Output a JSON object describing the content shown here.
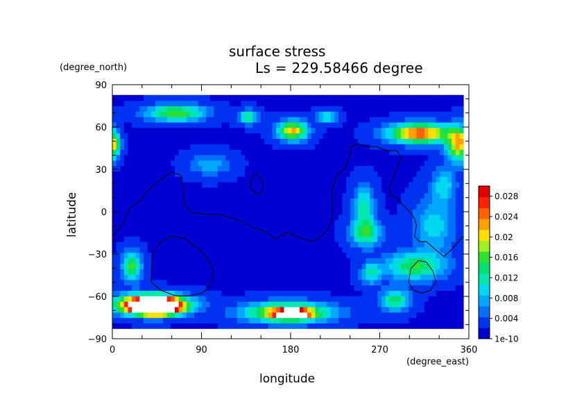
{
  "chart_data": {
    "type": "heatmap",
    "title": "surface stress",
    "subtitle": "Ls = 229.58466 degree",
    "xlabel": "longitude",
    "ylabel": "latitude",
    "x_unit": "(degree_east)",
    "y_unit": "(degree_north)",
    "xlim": [
      0,
      360
    ],
    "ylim": [
      -90,
      90
    ],
    "x_ticks": [
      "0",
      "90",
      "180",
      "270",
      "360"
    ],
    "y_ticks": [
      "90",
      "60",
      "30",
      "0",
      "−30",
      "−60",
      "−90"
    ],
    "colorbar": {
      "range": [
        0,
        0.03
      ],
      "tick_labels": [
        "0.028",
        "0.024",
        "0.02",
        "0.016",
        "0.012",
        "0.008",
        "0.004",
        "1e-10"
      ],
      "tick_values": [
        0.028,
        0.024,
        0.02,
        0.016,
        0.012,
        0.008,
        0.004,
        0.0
      ],
      "colors": [
        "#0000d0",
        "#0033f0",
        "#0070ff",
        "#00a8ff",
        "#00d8f0",
        "#00e8b0",
        "#00e070",
        "#30e030",
        "#a0f020",
        "#ffe000",
        "#ffa000",
        "#ff6000",
        "#ff2000",
        "#e00000"
      ]
    },
    "background_level": 0.002,
    "features": [
      {
        "lon": 40,
        "lat": -68,
        "rx": 35,
        "ry": 7,
        "peak": 0.034
      },
      {
        "lon": 45,
        "lat": -70,
        "rx": 22,
        "ry": 5,
        "peak": 0.04
      },
      {
        "lon": 180,
        "lat": -74,
        "rx": 42,
        "ry": 7,
        "peak": 0.022
      },
      {
        "lon": 185,
        "lat": -75,
        "rx": 15,
        "ry": 3,
        "peak": 0.032
      },
      {
        "lon": 315,
        "lat": 58,
        "rx": 30,
        "ry": 7,
        "peak": 0.024
      },
      {
        "lon": 355,
        "lat": 50,
        "rx": 12,
        "ry": 12,
        "peak": 0.02
      },
      {
        "lon": 2,
        "lat": 50,
        "rx": 6,
        "ry": 10,
        "peak": 0.018
      },
      {
        "lon": 185,
        "lat": 60,
        "rx": 15,
        "ry": 7,
        "peak": 0.02
      },
      {
        "lon": 65,
        "lat": 73,
        "rx": 30,
        "ry": 6,
        "peak": 0.015
      },
      {
        "lon": 140,
        "lat": 70,
        "rx": 10,
        "ry": 5,
        "peak": 0.011
      },
      {
        "lon": 220,
        "lat": 70,
        "rx": 10,
        "ry": 4,
        "peak": 0.01
      },
      {
        "lon": 20,
        "lat": -40,
        "rx": 10,
        "ry": 10,
        "peak": 0.014
      },
      {
        "lon": 310,
        "lat": -40,
        "rx": 30,
        "ry": 10,
        "peak": 0.013
      },
      {
        "lon": 290,
        "lat": -65,
        "rx": 15,
        "ry": 8,
        "peak": 0.012
      },
      {
        "lon": 265,
        "lat": -45,
        "rx": 10,
        "ry": 8,
        "peak": 0.009
      },
      {
        "lon": 260,
        "lat": -15,
        "rx": 15,
        "ry": 10,
        "peak": 0.013
      },
      {
        "lon": 258,
        "lat": 5,
        "rx": 10,
        "ry": 15,
        "peak": 0.01
      },
      {
        "lon": 330,
        "lat": -10,
        "rx": 20,
        "ry": 20,
        "peak": 0.008
      },
      {
        "lon": 340,
        "lat": 20,
        "rx": 12,
        "ry": 12,
        "peak": 0.008
      },
      {
        "lon": 100,
        "lat": 35,
        "rx": 20,
        "ry": 8,
        "peak": 0.006
      }
    ],
    "contours": [
      [
        [
          0,
          -18
        ],
        [
          10,
          -10
        ],
        [
          18,
          3
        ],
        [
          28,
          8
        ],
        [
          40,
          18
        ],
        [
          52,
          25
        ],
        [
          62,
          29
        ],
        [
          70,
          27
        ],
        [
          73,
          15
        ],
        [
          74,
          5
        ],
        [
          80,
          0
        ],
        [
          95,
          -2
        ],
        [
          110,
          -2
        ],
        [
          125,
          -5
        ],
        [
          135,
          -8
        ],
        [
          145,
          -12
        ],
        [
          155,
          -14
        ],
        [
          168,
          -20
        ],
        [
          180,
          -15
        ],
        [
          195,
          -20
        ],
        [
          205,
          -22
        ],
        [
          215,
          -18
        ],
        [
          222,
          -12
        ],
        [
          225,
          -5
        ],
        [
          226,
          5
        ],
        [
          225,
          15
        ],
        [
          230,
          27
        ],
        [
          238,
          32
        ],
        [
          243,
          40
        ],
        [
          245,
          48
        ],
        [
          252,
          50
        ],
        [
          260,
          48
        ],
        [
          270,
          48
        ],
        [
          282,
          45
        ],
        [
          292,
          45
        ],
        [
          296,
          40
        ],
        [
          292,
          32
        ],
        [
          288,
          25
        ],
        [
          284,
          18
        ],
        [
          286,
          12
        ],
        [
          292,
          10
        ],
        [
          298,
          5
        ],
        [
          305,
          0
        ],
        [
          310,
          -5
        ],
        [
          312,
          -10
        ],
        [
          310,
          -18
        ],
        [
          315,
          -22
        ],
        [
          322,
          -22
        ],
        [
          330,
          -27
        ],
        [
          340,
          -33
        ],
        [
          348,
          -28
        ],
        [
          355,
          -22
        ],
        [
          360,
          -18
        ]
      ],
      [
        [
          142,
          23
        ],
        [
          148,
          28
        ],
        [
          153,
          25
        ],
        [
          155,
          18
        ],
        [
          152,
          13
        ],
        [
          146,
          14
        ],
        [
          141,
          18
        ],
        [
          142,
          23
        ]
      ],
      [
        [
          40,
          -42
        ],
        [
          42,
          -30
        ],
        [
          50,
          -22
        ],
        [
          62,
          -18
        ],
        [
          75,
          -20
        ],
        [
          90,
          -28
        ],
        [
          100,
          -37
        ],
        [
          104,
          -45
        ],
        [
          100,
          -55
        ],
        [
          92,
          -60
        ],
        [
          80,
          -62
        ],
        [
          65,
          -62
        ],
        [
          50,
          -58
        ],
        [
          40,
          -52
        ],
        [
          40,
          -42
        ]
      ],
      [
        [
          304,
          -52
        ],
        [
          306,
          -42
        ],
        [
          314,
          -36
        ],
        [
          322,
          -37
        ],
        [
          329,
          -44
        ],
        [
          332,
          -52
        ],
        [
          326,
          -58
        ],
        [
          318,
          -60
        ],
        [
          309,
          -58
        ],
        [
          304,
          -52
        ]
      ]
    ]
  }
}
